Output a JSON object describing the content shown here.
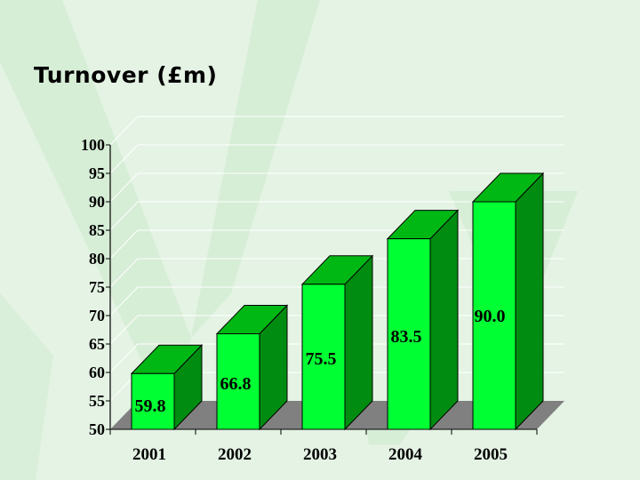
{
  "slide": {
    "title": "Turnover (£m)"
  },
  "colors": {
    "background": "#e4f3e4",
    "watermark": "#d2ebd2",
    "bar_front": "#00ff33",
    "bar_top": "#00b814",
    "bar_side": "#008c10",
    "floor": "#808080",
    "gridline": "#ffffff"
  },
  "chart_data": {
    "type": "bar",
    "title": "Turnover (£m)",
    "xlabel": "",
    "ylabel": "",
    "categories": [
      "2001",
      "2002",
      "2003",
      "2004",
      "2005"
    ],
    "values": [
      59.8,
      66.8,
      75.5,
      83.5,
      90.0
    ],
    "data_labels": [
      "59.8",
      "66.8",
      "75.5",
      "83.5",
      "90.0"
    ],
    "ylim": [
      50,
      100
    ],
    "yticks": [
      "50",
      "55",
      "60",
      "65",
      "70",
      "75",
      "80",
      "85",
      "90",
      "95",
      "100"
    ],
    "grid": true,
    "legend": "none",
    "style": "3d-column"
  }
}
